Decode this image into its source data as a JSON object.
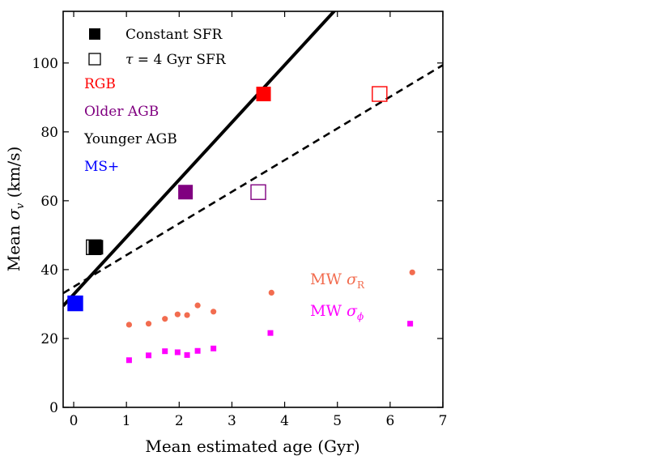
{
  "chart_data": {
    "type": "scatter",
    "xlabel": "Mean estimated age (Gyr)",
    "ylabel_prefix": "Mean ",
    "ylabel_symbol": "σ",
    "ylabel_subscript": "v",
    "ylabel_suffix": " (km/s)",
    "xlim": [
      -0.2,
      7
    ],
    "ylim": [
      0,
      115
    ],
    "xticks": [
      0,
      1,
      2,
      3,
      4,
      5,
      6,
      7
    ],
    "yticks": [
      0,
      20,
      40,
      60,
      80,
      100
    ],
    "legend": {
      "constant_label": "Constant SFR",
      "tau_label_symbol": "τ",
      "tau_label_rest": " = 4 Gyr SFR"
    },
    "populations": [
      {
        "name": "RGB",
        "color": "#ff0000",
        "constant_age": 3.6,
        "tau_age": 5.8,
        "sigma": 91
      },
      {
        "name": "Older AGB",
        "color": "#800080",
        "constant_age": 2.12,
        "tau_age": 3.5,
        "sigma": 62.5
      },
      {
        "name": "Younger AGB",
        "color": "#000000",
        "constant_age": 0.42,
        "tau_age": 0.38,
        "sigma": 46.5
      },
      {
        "name": "MS+",
        "color": "#0000ff",
        "constant_age": 0.03,
        "tau_age": 0.03,
        "sigma": 30.2
      }
    ],
    "fit_lines": [
      {
        "name": "Constant SFR fit",
        "style": "solid",
        "intercept": 32.8,
        "slope": 16.65
      },
      {
        "name": "tau = 4 Gyr fit",
        "style": "dashed",
        "intercept": 35.0,
        "slope": 9.2
      }
    ],
    "mw_sigma_r": {
      "label_prefix": "MW ",
      "symbol": "σ",
      "subscript": "R",
      "color": "#f26c4f",
      "points": [
        {
          "x": 1.05,
          "y": 24.0
        },
        {
          "x": 1.42,
          "y": 24.3
        },
        {
          "x": 1.73,
          "y": 25.7
        },
        {
          "x": 1.97,
          "y": 27.0
        },
        {
          "x": 2.15,
          "y": 26.8
        },
        {
          "x": 2.35,
          "y": 29.6
        },
        {
          "x": 2.65,
          "y": 27.8
        },
        {
          "x": 3.75,
          "y": 33.3
        },
        {
          "x": 6.42,
          "y": 39.2
        }
      ]
    },
    "mw_sigma_phi": {
      "label_prefix": "MW ",
      "symbol": "σ",
      "subscript": "ϕ",
      "color": "#ff00ff",
      "points": [
        {
          "x": 1.05,
          "y": 13.7
        },
        {
          "x": 1.42,
          "y": 15.1
        },
        {
          "x": 1.73,
          "y": 16.3
        },
        {
          "x": 1.97,
          "y": 16.0
        },
        {
          "x": 2.15,
          "y": 15.2
        },
        {
          "x": 2.35,
          "y": 16.4
        },
        {
          "x": 2.65,
          "y": 17.1
        },
        {
          "x": 3.73,
          "y": 21.6
        },
        {
          "x": 6.38,
          "y": 24.3
        }
      ]
    }
  }
}
